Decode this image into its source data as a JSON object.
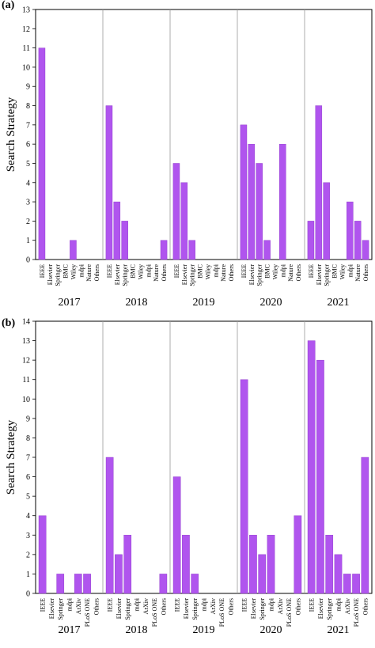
{
  "chart_data": [
    {
      "type": "bar",
      "panel_label": "(a)",
      "ylabel": "Search Strategy",
      "ylim": [
        0,
        13
      ],
      "yticks": [
        0,
        1,
        2,
        3,
        4,
        5,
        6,
        7,
        8,
        9,
        10,
        11,
        12,
        13
      ],
      "color": "#b055ee",
      "groups": [
        {
          "year": "2017",
          "categories": [
            "IEEE",
            "Elsevier",
            "Springer",
            "BMC",
            "Wiley",
            "mdpi",
            "Nature",
            "Others"
          ],
          "values": [
            11,
            0,
            0,
            0,
            1,
            0,
            0,
            0
          ]
        },
        {
          "year": "2018",
          "categories": [
            "IEEE",
            "Elsevier",
            "Springer",
            "BMC",
            "Wiley",
            "mdpi",
            "Nature",
            "Others"
          ],
          "values": [
            8,
            3,
            2,
            0,
            0,
            0,
            0,
            1
          ]
        },
        {
          "year": "2019",
          "categories": [
            "IEEE",
            "Elsevier",
            "Springer",
            "BMC",
            "Wiley",
            "mdpi",
            "Nature",
            "Others"
          ],
          "values": [
            5,
            4,
            1,
            0,
            0,
            0,
            0,
            0
          ]
        },
        {
          "year": "2020",
          "categories": [
            "IEEE",
            "Elsevier",
            "Springer",
            "BMC",
            "Wiley",
            "mdpi",
            "Nature",
            "Others"
          ],
          "values": [
            7,
            6,
            5,
            1,
            0,
            6,
            0,
            0
          ]
        },
        {
          "year": "2021",
          "categories": [
            "IEEE",
            "Elsevier",
            "Springer",
            "BMC",
            "Wiley",
            "mdpi",
            "Nature",
            "Others"
          ],
          "values": [
            2,
            8,
            4,
            0,
            0,
            3,
            2,
            1
          ]
        }
      ]
    },
    {
      "type": "bar",
      "panel_label": "(b)",
      "ylabel": "Search Strategy",
      "ylim": [
        0,
        14
      ],
      "yticks": [
        0,
        1,
        2,
        3,
        4,
        5,
        6,
        7,
        8,
        9,
        10,
        11,
        12,
        13,
        14
      ],
      "color": "#b055ee",
      "groups": [
        {
          "year": "2017",
          "categories": [
            "IEEE",
            "Elsevier",
            "Springer",
            "mdpi",
            "ArXiv",
            "PLoS ONE",
            "Others"
          ],
          "values": [
            4,
            0,
            1,
            0,
            1,
            1,
            0
          ]
        },
        {
          "year": "2018",
          "categories": [
            "IEEE",
            "Elsevier",
            "Springer",
            "mdpi",
            "ArXiv",
            "PLoS ONE",
            "Others"
          ],
          "values": [
            7,
            2,
            3,
            0,
            0,
            0,
            1
          ]
        },
        {
          "year": "2019",
          "categories": [
            "IEEE",
            "Elsevier",
            "Springer",
            "mdpi",
            "ArXiv",
            "PLoS ONE",
            "Others"
          ],
          "values": [
            6,
            3,
            1,
            0,
            0,
            0,
            0
          ]
        },
        {
          "year": "2020",
          "categories": [
            "IEEE",
            "Elsevier",
            "Springer",
            "mdpi",
            "ArXiv",
            "PLoS ONE",
            "Others"
          ],
          "values": [
            11,
            3,
            2,
            3,
            0,
            0,
            4
          ]
        },
        {
          "year": "2021",
          "categories": [
            "IEEE",
            "Elsevier",
            "Springer",
            "mdpi",
            "ArXiv",
            "PLoS ONE",
            "Others"
          ],
          "values": [
            13,
            12,
            3,
            2,
            1,
            1,
            7
          ]
        }
      ]
    }
  ]
}
